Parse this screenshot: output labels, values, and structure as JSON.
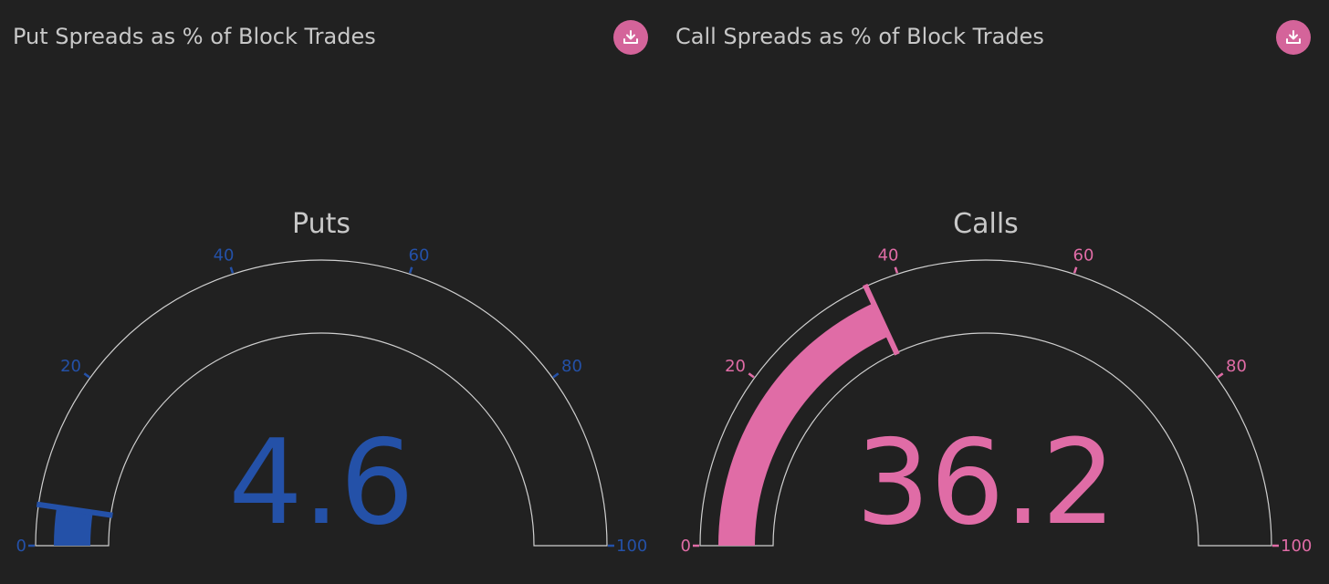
{
  "panels": [
    {
      "title": "Put Spreads as % of Block Trades",
      "download_icon": "download-icon"
    },
    {
      "title": "Call Spreads as % of Block Trades",
      "download_icon": "download-icon"
    }
  ],
  "colors": {
    "background": "#212121",
    "text": "#c8c8c8",
    "outline": "#d0d0d0",
    "download_button": "#d4649a",
    "puts": "#2451a8",
    "calls": "#e06ca6"
  },
  "chart_data": [
    {
      "type": "gauge",
      "title": "Puts",
      "value": 4.6,
      "value_label": "4.6",
      "range": [
        0,
        100
      ],
      "ticks": [
        0,
        20,
        40,
        60,
        80,
        100
      ],
      "tick_labels": [
        "0",
        "20",
        "40",
        "60",
        "80",
        "100"
      ],
      "color": "#2451a8"
    },
    {
      "type": "gauge",
      "title": "Calls",
      "value": 36.2,
      "value_label": "36.2",
      "range": [
        0,
        100
      ],
      "ticks": [
        0,
        20,
        40,
        60,
        80,
        100
      ],
      "tick_labels": [
        "0",
        "20",
        "40",
        "60",
        "80",
        "100"
      ],
      "color": "#e06ca6"
    }
  ]
}
